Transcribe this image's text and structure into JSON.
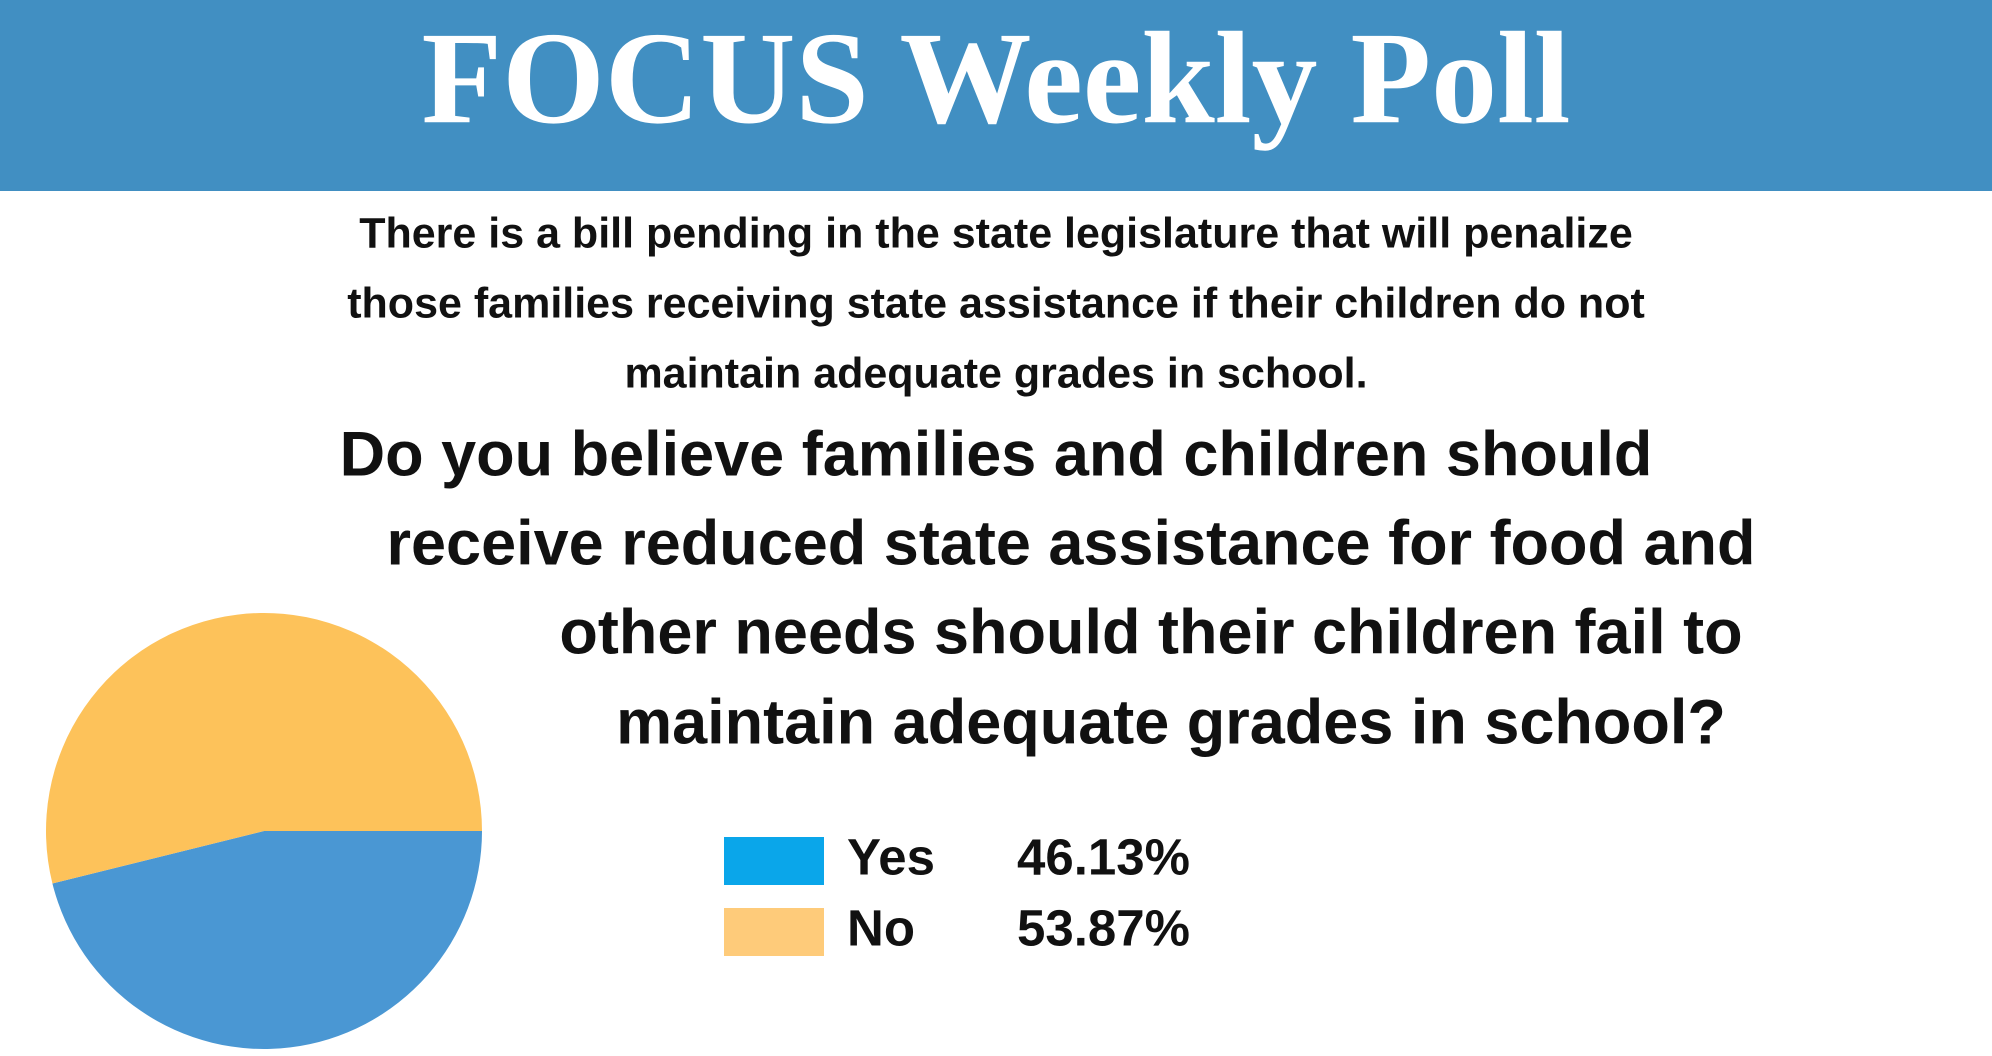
{
  "chart_data": {
    "type": "pie",
    "title": "FOCUS Weekly Poll",
    "subtitle_lines": [
      "There is a bill pending in the state legislature that will penalize",
      "those families receiving state assistance if their children do not",
      "maintain adequate grades in school."
    ],
    "question_lines": [
      "Do you believe families and children should",
      "receive reduced state assistance for food and",
      "other needs should their children fail to",
      "maintain adequate grades in school?"
    ],
    "categories": [
      "Yes",
      "No"
    ],
    "values": [
      46.13,
      53.87
    ],
    "value_labels": [
      "46.13%",
      "53.87%"
    ],
    "colors": [
      "#4a97d3",
      "#fdc25a"
    ],
    "legend_colors": [
      "#0aa6ea",
      "#fecb7a"
    ]
  }
}
